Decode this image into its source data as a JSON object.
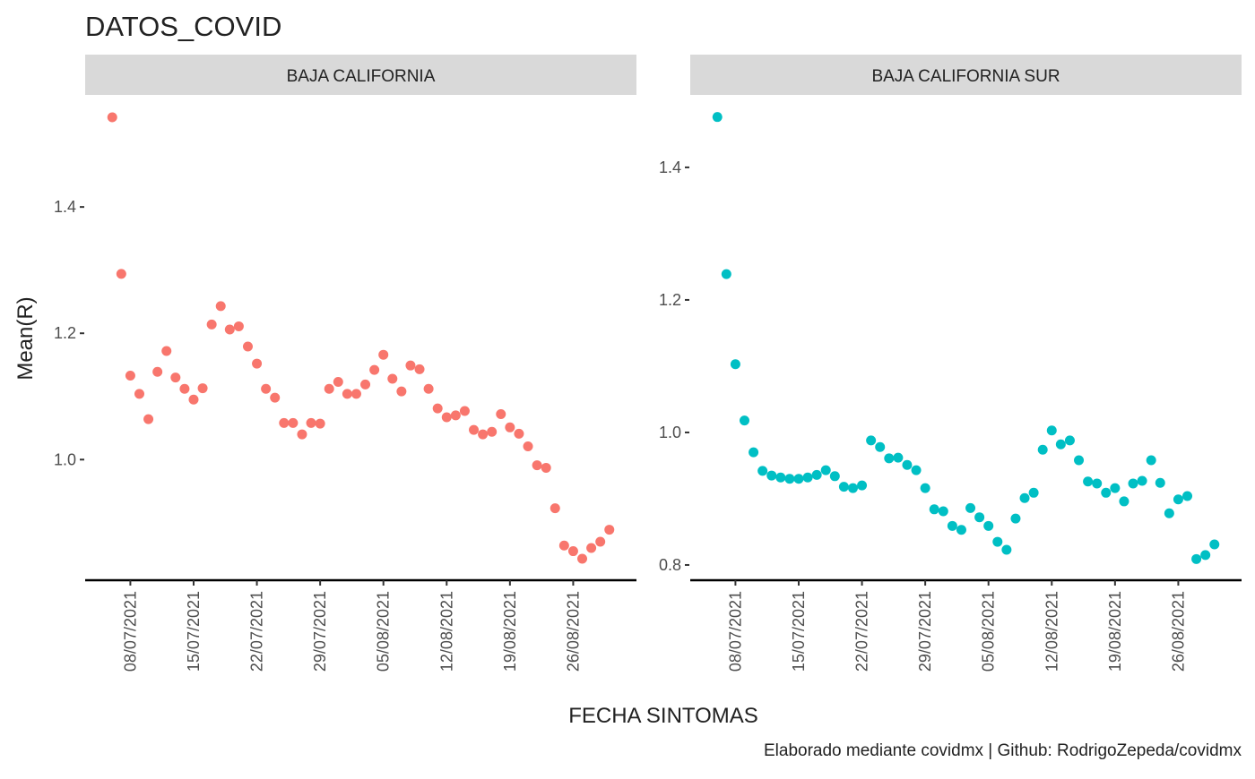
{
  "chart_data": {
    "type": "scatter",
    "title": "DATOS_COVID",
    "x_label": "FECHA SINTOMAS",
    "y_label": "Mean(R)",
    "caption": "Elaborado mediante covidmx | Github: RodrigoZepeda/covidmx",
    "panels": [
      {
        "title": "BAJA CALIFORNIA",
        "color": "#F8766D",
        "x": [
          "06/07/2021",
          "07/07/2021",
          "08/07/2021",
          "09/07/2021",
          "10/07/2021",
          "11/07/2021",
          "12/07/2021",
          "13/07/2021",
          "14/07/2021",
          "15/07/2021",
          "16/07/2021",
          "17/07/2021",
          "18/07/2021",
          "19/07/2021",
          "20/07/2021",
          "21/07/2021",
          "22/07/2021",
          "23/07/2021",
          "24/07/2021",
          "25/07/2021",
          "26/07/2021",
          "27/07/2021",
          "28/07/2021",
          "29/07/2021",
          "30/07/2021",
          "31/07/2021",
          "01/08/2021",
          "02/08/2021",
          "03/08/2021",
          "04/08/2021",
          "05/08/2021",
          "06/08/2021",
          "07/08/2021",
          "08/08/2021",
          "09/08/2021",
          "10/08/2021",
          "11/08/2021",
          "12/08/2021",
          "13/08/2021",
          "14/08/2021",
          "15/08/2021",
          "16/08/2021",
          "17/08/2021",
          "18/08/2021",
          "19/08/2021",
          "20/08/2021",
          "21/08/2021",
          "22/08/2021",
          "23/08/2021",
          "24/08/2021",
          "25/08/2021",
          "26/08/2021",
          "27/08/2021",
          "28/08/2021",
          "29/08/2021",
          "30/08/2021"
        ],
        "values": [
          1.542,
          1.294,
          1.133,
          1.104,
          1.064,
          1.139,
          1.172,
          1.13,
          1.112,
          1.095,
          1.113,
          1.214,
          1.243,
          1.206,
          1.211,
          1.179,
          1.152,
          1.112,
          1.098,
          1.058,
          1.058,
          1.04,
          1.058,
          1.057,
          1.112,
          1.123,
          1.104,
          1.104,
          1.119,
          1.142,
          1.166,
          1.128,
          1.108,
          1.149,
          1.143,
          1.112,
          1.081,
          1.067,
          1.07,
          1.077,
          1.047,
          1.04,
          1.044,
          1.072,
          1.051,
          1.041,
          1.021,
          0.991,
          0.987,
          0.923,
          0.864,
          0.855,
          0.843,
          0.86,
          0.87,
          0.889
        ],
        "xlim": [
          "03/07/2021",
          "02/09/2021"
        ],
        "xticks": [
          "08/07/2021",
          "15/07/2021",
          "22/07/2021",
          "29/07/2021",
          "05/08/2021",
          "12/08/2021",
          "19/08/2021",
          "26/08/2021"
        ],
        "ylim": [
          0.809,
          1.576
        ],
        "yticks": [
          {
            "value": 1,
            "label": "1.0"
          },
          1.2,
          1.4
        ]
      },
      {
        "title": "BAJA CALIFORNIA SUR",
        "color": "#00BFC4",
        "x": [
          "06/07/2021",
          "07/07/2021",
          "08/07/2021",
          "09/07/2021",
          "10/07/2021",
          "11/07/2021",
          "12/07/2021",
          "13/07/2021",
          "14/07/2021",
          "15/07/2021",
          "16/07/2021",
          "17/07/2021",
          "18/07/2021",
          "19/07/2021",
          "20/07/2021",
          "21/07/2021",
          "22/07/2021",
          "23/07/2021",
          "24/07/2021",
          "25/07/2021",
          "26/07/2021",
          "27/07/2021",
          "28/07/2021",
          "29/07/2021",
          "30/07/2021",
          "31/07/2021",
          "01/08/2021",
          "02/08/2021",
          "03/08/2021",
          "04/08/2021",
          "05/08/2021",
          "06/08/2021",
          "07/08/2021",
          "08/08/2021",
          "09/08/2021",
          "10/08/2021",
          "11/08/2021",
          "12/08/2021",
          "13/08/2021",
          "14/08/2021",
          "15/08/2021",
          "16/08/2021",
          "17/08/2021",
          "18/08/2021",
          "19/08/2021",
          "20/08/2021",
          "21/08/2021",
          "22/08/2021",
          "23/08/2021",
          "24/08/2021",
          "25/08/2021",
          "26/08/2021",
          "27/08/2021",
          "28/08/2021",
          "29/08/2021",
          "30/08/2021"
        ],
        "values": [
          1.476,
          1.239,
          1.103,
          1.018,
          0.97,
          0.942,
          0.935,
          0.932,
          0.93,
          0.93,
          0.932,
          0.936,
          0.943,
          0.934,
          0.918,
          0.916,
          0.92,
          0.988,
          0.978,
          0.961,
          0.962,
          0.951,
          0.943,
          0.916,
          0.884,
          0.881,
          0.859,
          0.853,
          0.886,
          0.872,
          0.859,
          0.835,
          0.823,
          0.87,
          0.901,
          0.909,
          0.974,
          1.003,
          0.982,
          0.988,
          0.958,
          0.926,
          0.923,
          0.909,
          0.916,
          0.896,
          0.923,
          0.927,
          0.958,
          0.924,
          0.878,
          0.899,
          0.904,
          0.809,
          0.815,
          0.831
        ],
        "xlim": [
          "03/07/2021",
          "02/09/2021"
        ],
        "xticks": [
          "08/07/2021",
          "15/07/2021",
          "22/07/2021",
          "29/07/2021",
          "05/08/2021",
          "12/08/2021",
          "19/08/2021",
          "26/08/2021"
        ],
        "ylim": [
          0.777,
          1.508
        ],
        "yticks": [
          0.8,
          {
            "value": 1,
            "label": "1.0"
          },
          1.2,
          1.4
        ]
      }
    ]
  }
}
